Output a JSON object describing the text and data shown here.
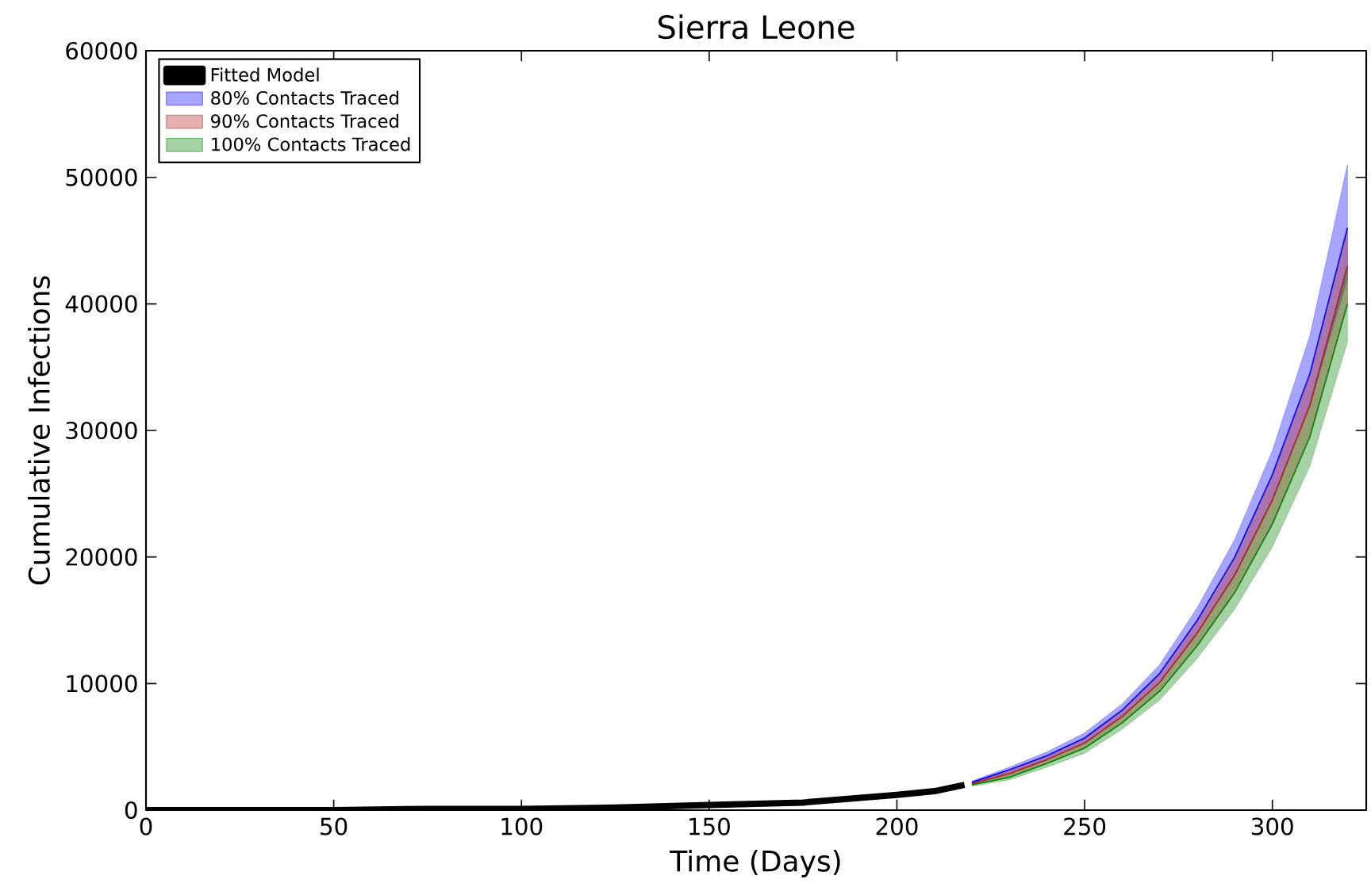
{
  "chart_data": {
    "type": "line",
    "title": "Sierra Leone",
    "xlabel": "Time (Days)",
    "ylabel": "Cumulative Infections",
    "xlim": [
      0,
      325
    ],
    "ylim": [
      0,
      60000
    ],
    "xticks": [
      0,
      50,
      100,
      150,
      200,
      250,
      300
    ],
    "yticks": [
      0,
      10000,
      20000,
      30000,
      40000,
      50000,
      60000
    ],
    "legend": "top left",
    "grid": false,
    "series": [
      {
        "name": "Fitted Model",
        "color": "#000000",
        "x": [
          0,
          25,
          50,
          75,
          100,
          125,
          150,
          175,
          200,
          210,
          218
        ],
        "values": [
          0,
          0,
          0,
          100,
          100,
          200,
          400,
          600,
          1200,
          1500,
          2000
        ]
      },
      {
        "name": "80% Contacts Traced",
        "color": "#0000ff",
        "x": [
          220,
          230,
          240,
          250,
          260,
          270,
          280,
          290,
          300,
          310,
          320
        ],
        "values": [
          2200,
          3200,
          4300,
          5700,
          7900,
          10800,
          15000,
          20000,
          26500,
          34500,
          46000
        ],
        "lower": [
          2100,
          3000,
          4000,
          5300,
          7400,
          10100,
          14000,
          18600,
          24600,
          32000,
          42000
        ],
        "upper": [
          2300,
          3400,
          4600,
          6100,
          8400,
          11500,
          16000,
          21400,
          28400,
          37500,
          51000
        ]
      },
      {
        "name": "90% Contacts Traced",
        "color": "#b31a1a",
        "x": [
          220,
          230,
          240,
          250,
          260,
          270,
          280,
          290,
          300,
          310,
          320
        ],
        "values": [
          2100,
          2900,
          4000,
          5300,
          7400,
          10100,
          14000,
          18600,
          24500,
          32000,
          43000
        ],
        "lower": [
          2000,
          2700,
          3700,
          4900,
          6900,
          9400,
          13000,
          17300,
          22700,
          29700,
          40000
        ],
        "upper": [
          2200,
          3100,
          4300,
          5700,
          7900,
          10800,
          15000,
          19900,
          26300,
          34300,
          46000
        ]
      },
      {
        "name": "100% Contacts Traced",
        "color": "#008000",
        "x": [
          220,
          230,
          240,
          250,
          260,
          270,
          280,
          290,
          300,
          310,
          320
        ],
        "values": [
          2000,
          2600,
          3700,
          4900,
          6900,
          9400,
          13000,
          17200,
          22600,
          29500,
          40000
        ],
        "lower": [
          1900,
          2400,
          3400,
          4500,
          6400,
          8700,
          12000,
          15900,
          20800,
          27200,
          37000
        ],
        "upper": [
          2100,
          2800,
          4000,
          5300,
          7400,
          10100,
          14000,
          18500,
          24400,
          31800,
          43000
        ]
      }
    ]
  }
}
